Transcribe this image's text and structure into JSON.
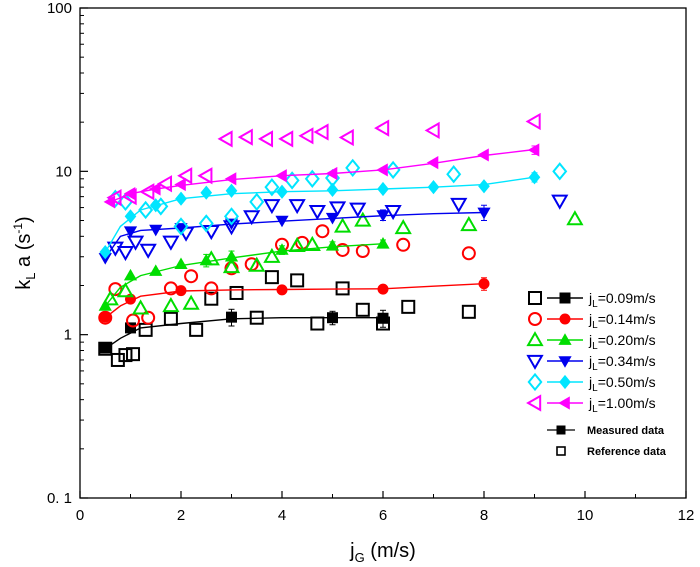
{
  "chart_data": {
    "type": "scatter",
    "title": "",
    "xlabel": {
      "main": "j",
      "sub": "G",
      "rest": " (m/s)"
    },
    "ylabel": {
      "main": "k",
      "sub": "L",
      "rest": " a (s",
      "sup": "-1",
      "end": ")"
    },
    "xlim": [
      0,
      12
    ],
    "ylim": [
      0.1,
      100
    ],
    "yscale": "log",
    "xticks": [
      "0",
      "2",
      "4",
      "6",
      "8",
      "10",
      "12"
    ],
    "yticks": [
      {
        "v": 0.1,
        "label": "0. 1"
      },
      {
        "v": 1,
        "label": "1"
      },
      {
        "v": 10,
        "label": "10"
      },
      {
        "v": 100,
        "label": "100"
      }
    ],
    "legend_position": "right",
    "series": [
      {
        "name": "jL=0.09m/s",
        "legend_prefix": "j",
        "legend_sub": "L",
        "legend_rest": "=0.09m/s",
        "color": "#000000",
        "marker": "square",
        "measured": [
          [
            0.5,
            0.83
          ],
          [
            1.0,
            1.1
          ],
          [
            3.0,
            1.28
          ],
          [
            5.0,
            1.27
          ],
          [
            6.0,
            1.26
          ]
        ],
        "measured_err": [
          0,
          0,
          0.15,
          0.12,
          0.15
        ],
        "fit": [
          [
            0.5,
            0.82
          ],
          [
            0.8,
            0.95
          ],
          [
            1.2,
            1.1
          ],
          [
            2.0,
            1.17
          ],
          [
            3.0,
            1.25
          ],
          [
            4.0,
            1.27
          ],
          [
            5.0,
            1.27
          ],
          [
            6.0,
            1.27
          ]
        ],
        "reference": [
          [
            0.5,
            0.82
          ],
          [
            0.75,
            0.7
          ],
          [
            0.9,
            0.75
          ],
          [
            1.05,
            0.76
          ],
          [
            1.3,
            1.07
          ],
          [
            1.8,
            1.25
          ],
          [
            2.3,
            1.07
          ],
          [
            2.6,
            1.66
          ],
          [
            3.1,
            1.8
          ],
          [
            3.5,
            1.27
          ],
          [
            3.8,
            2.25
          ],
          [
            4.3,
            2.15
          ],
          [
            4.7,
            1.17
          ],
          [
            5.2,
            1.92
          ],
          [
            5.6,
            1.42
          ],
          [
            6.0,
            1.17
          ],
          [
            6.5,
            1.48
          ],
          [
            7.7,
            1.38
          ]
        ]
      },
      {
        "name": "jL=0.14m/s",
        "legend_prefix": "j",
        "legend_sub": "L",
        "legend_rest": "=0.14m/s",
        "color": "#ff0000",
        "marker": "circle",
        "measured": [
          [
            0.5,
            1.28
          ],
          [
            1.0,
            1.65
          ],
          [
            2.0,
            1.86
          ],
          [
            4.0,
            1.88
          ],
          [
            6.0,
            1.9
          ],
          [
            8.0,
            2.05
          ]
        ],
        "measured_err": [
          0,
          0,
          0,
          0,
          0,
          0.18
        ],
        "fit": [
          [
            0.5,
            1.27
          ],
          [
            0.8,
            1.5
          ],
          [
            1.2,
            1.72
          ],
          [
            2.0,
            1.85
          ],
          [
            3.0,
            1.88
          ],
          [
            4.0,
            1.89
          ],
          [
            5.0,
            1.9
          ],
          [
            6.0,
            1.91
          ],
          [
            7.0,
            1.98
          ],
          [
            8.0,
            2.05
          ]
        ],
        "reference": [
          [
            0.5,
            1.27
          ],
          [
            0.7,
            1.9
          ],
          [
            1.05,
            1.22
          ],
          [
            1.35,
            1.27
          ],
          [
            1.8,
            1.92
          ],
          [
            2.2,
            2.28
          ],
          [
            2.6,
            1.92
          ],
          [
            3.0,
            2.55
          ],
          [
            3.4,
            2.7
          ],
          [
            4.0,
            3.55
          ],
          [
            4.4,
            3.65
          ],
          [
            4.8,
            4.3
          ],
          [
            5.2,
            3.3
          ],
          [
            5.6,
            3.25
          ],
          [
            6.4,
            3.55
          ],
          [
            7.7,
            3.15
          ]
        ]
      },
      {
        "name": "jL=0.20m/s",
        "legend_prefix": "j",
        "legend_sub": "L",
        "legend_rest": "=0.20m/s",
        "color": "#00dd00",
        "marker": "triangle-up",
        "measured": [
          [
            0.5,
            1.5
          ],
          [
            1.0,
            2.3
          ],
          [
            1.5,
            2.45
          ],
          [
            2.0,
            2.7
          ],
          [
            2.5,
            2.85
          ],
          [
            3.0,
            3.0
          ],
          [
            4.0,
            3.3
          ],
          [
            5.0,
            3.5
          ],
          [
            6.0,
            3.6
          ]
        ],
        "measured_err": [
          0,
          0,
          0,
          0,
          0.25,
          0.25,
          0.2,
          0.2,
          0.2
        ],
        "fit": [
          [
            0.5,
            1.5
          ],
          [
            0.8,
            1.95
          ],
          [
            1.2,
            2.3
          ],
          [
            2.0,
            2.65
          ],
          [
            3.0,
            2.95
          ],
          [
            4.0,
            3.25
          ],
          [
            5.0,
            3.45
          ],
          [
            6.0,
            3.6
          ]
        ],
        "reference": [
          [
            0.6,
            1.65
          ],
          [
            0.9,
            1.85
          ],
          [
            1.2,
            1.45
          ],
          [
            1.8,
            1.5
          ],
          [
            2.2,
            1.55
          ],
          [
            2.6,
            2.9
          ],
          [
            3.0,
            2.6
          ],
          [
            3.5,
            2.65
          ],
          [
            3.8,
            3.0
          ],
          [
            4.3,
            3.5
          ],
          [
            4.6,
            3.55
          ],
          [
            5.2,
            4.6
          ],
          [
            5.6,
            5.0
          ],
          [
            6.4,
            4.5
          ],
          [
            7.7,
            4.7
          ],
          [
            9.8,
            5.1
          ]
        ]
      },
      {
        "name": "jL=0.34m/s",
        "legend_prefix": "j",
        "legend_sub": "L",
        "legend_rest": "=0.34m/s",
        "color": "#0000ee",
        "marker": "triangle-down",
        "measured": [
          [
            0.5,
            2.95
          ],
          [
            1.0,
            4.3
          ],
          [
            1.5,
            4.4
          ],
          [
            2.0,
            4.5
          ],
          [
            3.0,
            4.8
          ],
          [
            4.0,
            5.0
          ],
          [
            5.0,
            5.2
          ],
          [
            6.0,
            5.4
          ],
          [
            8.0,
            5.6
          ]
        ],
        "measured_err": [
          0,
          0,
          0,
          0,
          0,
          0,
          0,
          0.4,
          0.6
        ],
        "fit": [
          [
            0.5,
            2.95
          ],
          [
            0.8,
            4.0
          ],
          [
            1.2,
            4.35
          ],
          [
            2.0,
            4.5
          ],
          [
            3.0,
            4.75
          ],
          [
            4.0,
            4.95
          ],
          [
            5.0,
            5.15
          ],
          [
            6.0,
            5.35
          ],
          [
            7.0,
            5.5
          ],
          [
            8.0,
            5.6
          ]
        ],
        "reference": [
          [
            0.7,
            3.4
          ],
          [
            0.9,
            3.2
          ],
          [
            1.1,
            3.7
          ],
          [
            1.35,
            3.3
          ],
          [
            1.8,
            3.7
          ],
          [
            2.1,
            4.2
          ],
          [
            2.6,
            4.3
          ],
          [
            3.0,
            4.6
          ],
          [
            3.4,
            5.3
          ],
          [
            3.8,
            6.2
          ],
          [
            4.3,
            6.2
          ],
          [
            4.7,
            5.7
          ],
          [
            5.1,
            6.0
          ],
          [
            5.5,
            5.9
          ],
          [
            6.2,
            5.7
          ],
          [
            7.5,
            6.3
          ],
          [
            9.5,
            6.6
          ]
        ]
      },
      {
        "name": "jL=0.50m/s",
        "legend_prefix": "j",
        "legend_sub": "L",
        "legend_rest": "=0.50m/s",
        "color": "#00e5ff",
        "marker": "diamond",
        "measured": [
          [
            0.5,
            3.2
          ],
          [
            1.0,
            5.3
          ],
          [
            1.5,
            6.2
          ],
          [
            2.0,
            6.8
          ],
          [
            2.5,
            7.4
          ],
          [
            3.0,
            7.6
          ],
          [
            4.0,
            7.5
          ],
          [
            5.0,
            7.7
          ],
          [
            6.0,
            7.8
          ],
          [
            7.0,
            8.0
          ],
          [
            8.0,
            8.1
          ],
          [
            9.0,
            9.2
          ]
        ],
        "measured_err": [
          0,
          0,
          0,
          0,
          0,
          0,
          0,
          0,
          0,
          0,
          0,
          0.6
        ],
        "fit": [
          [
            0.5,
            3.2
          ],
          [
            0.8,
            4.6
          ],
          [
            1.2,
            5.8
          ],
          [
            2.0,
            6.8
          ],
          [
            3.0,
            7.3
          ],
          [
            4.0,
            7.5
          ],
          [
            5.0,
            7.6
          ],
          [
            6.0,
            7.8
          ],
          [
            7.0,
            8.0
          ],
          [
            8.0,
            8.3
          ],
          [
            9.0,
            9.2
          ]
        ],
        "reference": [
          [
            0.7,
            6.8
          ],
          [
            0.9,
            6.5
          ],
          [
            1.3,
            5.8
          ],
          [
            1.6,
            6.1
          ],
          [
            2.0,
            4.6
          ],
          [
            2.5,
            4.8
          ],
          [
            3.0,
            5.3
          ],
          [
            3.5,
            6.5
          ],
          [
            3.8,
            8.0
          ],
          [
            4.2,
            8.8
          ],
          [
            4.6,
            9.0
          ],
          [
            5.0,
            9.1
          ],
          [
            5.4,
            10.5
          ],
          [
            6.2,
            10.2
          ],
          [
            7.4,
            9.6
          ],
          [
            9.5,
            10.0
          ]
        ]
      },
      {
        "name": "jL=1.00m/s",
        "legend_prefix": "j",
        "legend_sub": "L",
        "legend_rest": "=1.00m/s",
        "color": "#ff00ff",
        "marker": "triangle-left",
        "measured": [
          [
            0.6,
            6.5
          ],
          [
            1.0,
            7.3
          ],
          [
            1.5,
            7.8
          ],
          [
            2.0,
            8.3
          ],
          [
            3.0,
            9.0
          ],
          [
            4.0,
            9.4
          ],
          [
            5.0,
            9.7
          ],
          [
            6.0,
            10.2
          ],
          [
            7.0,
            11.3
          ],
          [
            8.0,
            12.6
          ],
          [
            9.0,
            13.5
          ]
        ],
        "measured_err": [
          0,
          0,
          0,
          0,
          0,
          0,
          0,
          0,
          0,
          0,
          0.8
        ],
        "fit": [
          [
            0.6,
            6.5
          ],
          [
            1.0,
            7.3
          ],
          [
            1.5,
            7.8
          ],
          [
            2.0,
            8.2
          ],
          [
            3.0,
            8.9
          ],
          [
            4.0,
            9.4
          ],
          [
            5.0,
            9.7
          ],
          [
            6.0,
            10.2
          ],
          [
            7.0,
            11.2
          ],
          [
            8.0,
            12.5
          ],
          [
            9.0,
            13.6
          ]
        ],
        "reference": [
          [
            0.7,
            6.9
          ],
          [
            1.0,
            7.0
          ],
          [
            1.35,
            7.5
          ],
          [
            1.7,
            8.4
          ],
          [
            2.1,
            9.4
          ],
          [
            2.5,
            9.4
          ],
          [
            2.9,
            15.8
          ],
          [
            3.3,
            16.2
          ],
          [
            3.7,
            15.8
          ],
          [
            4.1,
            15.8
          ],
          [
            4.5,
            16.5
          ],
          [
            4.8,
            17.4
          ],
          [
            5.3,
            16.1
          ],
          [
            6.0,
            18.4
          ],
          [
            7.0,
            17.8
          ],
          [
            9.0,
            20.2
          ]
        ]
      }
    ],
    "legend_notes": [
      "Measured data",
      "Reference data"
    ]
  }
}
